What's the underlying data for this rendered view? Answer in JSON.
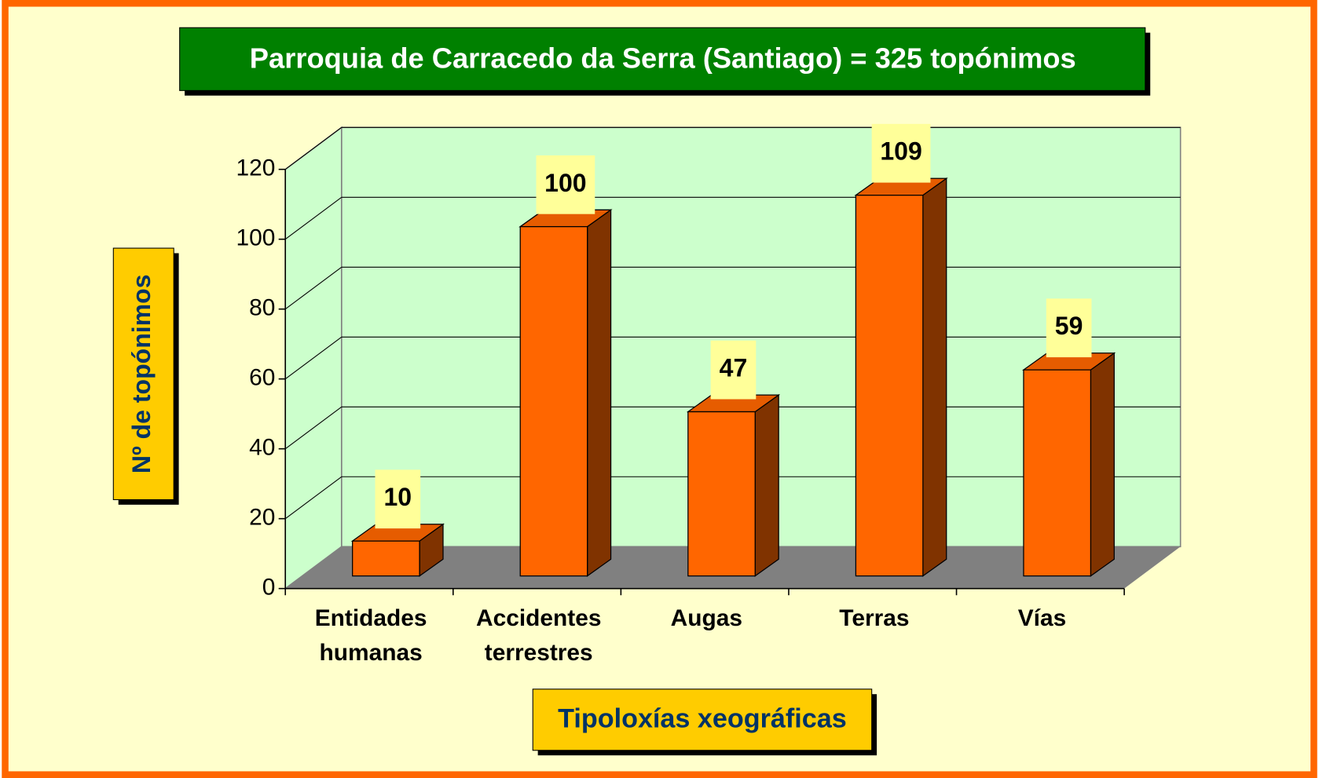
{
  "chart_data": {
    "type": "bar3d",
    "title": "Parroquia de Carracedo da Serra (Santiago) = 325 topónimos",
    "y_label": "Nº de topónimos",
    "x_label": "Tipoloxías xeográficas",
    "categories": [
      "Entidades humanas",
      "Accidentes terrestres",
      "Augas",
      "Terras",
      "Vías"
    ],
    "values": [
      10,
      100,
      47,
      109,
      59
    ],
    "color": "#ff6600",
    "ylim": [
      0,
      120
    ],
    "yticks": [
      0,
      20,
      40,
      60,
      80,
      100,
      120
    ],
    "grid": true
  }
}
